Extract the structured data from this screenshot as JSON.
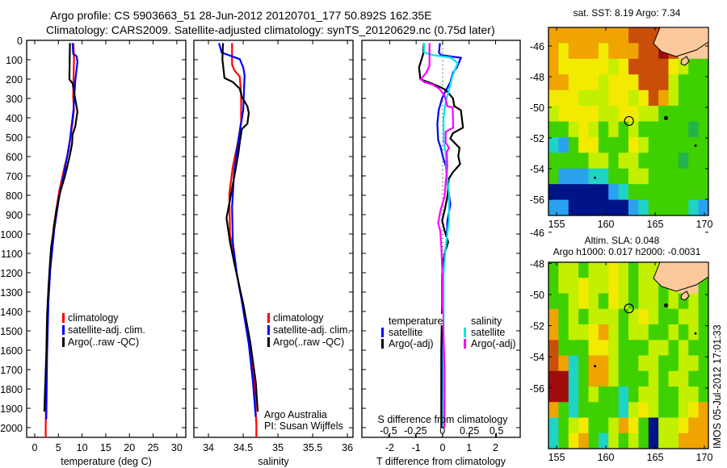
{
  "title_line1": "Argo profile: CS 5903663_51 28-Jun-2012 20120701_177 50.892S 162.35E",
  "title_line2": "Climatology: CARS2009. Satellite-adjusted climatology: synTS_20120629.nc (0.75d later)",
  "colors": {
    "climatology": "#ff0000",
    "satellite_adj": "#0000ff",
    "argo": "#000000",
    "s_satellite": "#00e5ee",
    "s_argo": "#ff00ff"
  },
  "chart_data": [
    {
      "type": "line",
      "xlabel": "temperature (deg C)",
      "ylabel": "",
      "xlim": [
        -1.7,
        31.9
      ],
      "ylim": [
        2050,
        0
      ],
      "xticks": [
        "0",
        "5",
        "10",
        "15",
        "20",
        "25",
        "30"
      ],
      "yticks": [
        "0",
        "100",
        "200",
        "300",
        "400",
        "500",
        "600",
        "700",
        "800",
        "900",
        "1000",
        "1100",
        "1200",
        "1300",
        "1400",
        "1500",
        "1600",
        "1700",
        "1800",
        "1900",
        "2000"
      ],
      "legend": [
        "climatology",
        "satellite-adj. clim.",
        "Argo(..raw -QC)"
      ],
      "series": [
        {
          "name": "climatology",
          "color": "#ff0000",
          "depth": [
            14,
            97,
            292,
            361,
            444,
            569,
            653,
            778,
            958,
            1181,
            1347,
            1625,
            1986,
            2050
          ],
          "values": [
            8.18,
            8.29,
            8.12,
            8.29,
            7.89,
            7.15,
            6.3,
            5.17,
            4.03,
            3.18,
            2.78,
            2.5,
            2.33,
            2.33
          ]
        },
        {
          "name": "satellite-adj. clim.",
          "color": "#0000ff",
          "depth": [
            14,
            69,
            83,
            111,
            208,
            361,
            514,
            597,
            708,
            806,
            972,
            1181,
            1347,
            1625,
            1958
          ],
          "values": [
            8.01,
            8.12,
            8.86,
            9.03,
            8.57,
            8.18,
            7.44,
            6.87,
            6.02,
            5.17,
            4.15,
            3.29,
            2.9,
            2.61,
            2.44
          ]
        },
        {
          "name": "Argo(..raw -QC)",
          "color": "#000000",
          "depth": [
            14,
            201,
            222,
            306,
            368,
            444,
            486,
            535,
            590,
            653,
            708,
            778,
            875,
            972,
            1069,
            1167,
            1278,
            1417,
            1625,
            1792,
            1917
          ],
          "values": [
            7.44,
            7.33,
            8.0,
            8.57,
            9.03,
            8.57,
            8.0,
            7.89,
            7.44,
            6.87,
            6.3,
            5.45,
            4.6,
            4.03,
            3.46,
            3.18,
            2.9,
            2.61,
            2.44,
            2.21,
            2.04
          ]
        }
      ]
    },
    {
      "type": "line",
      "xlabel": "salinity",
      "xlim": [
        33.79,
        36.08
      ],
      "ylim": [
        2050,
        0
      ],
      "xticks": [
        "34",
        "34.5",
        "35",
        "35.5",
        "36"
      ],
      "legend": [
        "climatology",
        "satellite-adj. clim.",
        "Argo(..raw -QC)"
      ],
      "annotations": [
        "Argo Australia",
        "PI: Susan Wijffels"
      ],
      "series": [
        {
          "name": "climatology",
          "color": "#ff0000",
          "depth": [
            14,
            125,
            153,
            188,
            278,
            417,
            514,
            653,
            792,
            1000,
            1167,
            1347,
            1556,
            1764,
            1986,
            2050
          ],
          "values": [
            34.34,
            34.34,
            34.37,
            34.45,
            34.47,
            34.47,
            34.43,
            34.35,
            34.3,
            34.31,
            34.39,
            34.48,
            34.58,
            34.66,
            34.69,
            34.69
          ]
        },
        {
          "name": "satellite-adj. clim.",
          "color": "#0000ff",
          "depth": [
            14,
            63,
            97,
            139,
            181,
            361,
            514,
            681,
            861,
            1042,
            1208,
            1347,
            1569,
            1764,
            1944
          ],
          "values": [
            34.15,
            34.19,
            34.45,
            34.5,
            34.52,
            34.5,
            34.43,
            34.37,
            34.34,
            34.35,
            34.41,
            34.48,
            34.58,
            34.64,
            34.68
          ]
        },
        {
          "name": "Argo(..raw -QC)",
          "color": "#000000",
          "depth": [
            14,
            97,
            194,
            215,
            250,
            292,
            340,
            375,
            431,
            458,
            528,
            583,
            667,
            764,
            861,
            917,
            1042,
            1181,
            1361,
            1556,
            1764,
            1917
          ],
          "values": [
            34.21,
            34.2,
            34.23,
            34.35,
            34.45,
            34.48,
            34.56,
            34.58,
            34.56,
            34.48,
            34.45,
            34.43,
            34.39,
            34.34,
            34.29,
            34.26,
            34.31,
            34.39,
            34.5,
            34.6,
            34.68,
            34.71
          ]
        }
      ]
    },
    {
      "type": "line",
      "xlabel": "T difference from climatology",
      "xlim": [
        -3.05,
        2.93
      ],
      "ylim": [
        2050,
        0
      ],
      "xticks": [
        "-2",
        "-1",
        "0",
        "1",
        "2"
      ],
      "secondary_xlabel": "S difference from climatology",
      "secondary_xlim": [
        -0.746,
        0.72
      ],
      "secondary_xticks": [
        "-0.5",
        "-0.25",
        "0",
        "0.25",
        "0.5"
      ],
      "legend_temperature_title": "temperature",
      "legend_salinity_title": "salinity",
      "legend": [
        "satellite",
        "Argo(-adj)",
        "satellite",
        "Argo(-adj)"
      ],
      "series": [
        {
          "name": "temperature satellite",
          "axis": "T",
          "color": "#0000ff",
          "depth": [
            14,
            63,
            76,
            90,
            139,
            167,
            215,
            257,
            299,
            361,
            431,
            514,
            556,
            611,
            653,
            736,
            847,
            931,
            1042,
            1139,
            1361,
            1700,
            2000
          ],
          "values": [
            -0.1,
            -0.14,
            -0.07,
            0.69,
            0.54,
            0.39,
            0.29,
            0.13,
            -0.02,
            -0.15,
            -0.2,
            -0.17,
            -0.07,
            0.03,
            0.13,
            0.18,
            0.29,
            0.18,
            0.15,
            0.03,
            0.03,
            0.02,
            0.03
          ]
        },
        {
          "name": "temperature Argo(-adj)",
          "axis": "T",
          "color": "#000000",
          "depth": [
            14,
            69,
            139,
            201,
            222,
            243,
            257,
            299,
            340,
            361,
            451,
            479,
            507,
            556,
            597,
            639,
            681,
            715,
            806,
            875,
            931,
            986,
            1042,
            1097,
            1208,
            1361,
            1600,
            2000
          ],
          "values": [
            -0.71,
            -0.73,
            -0.89,
            -0.84,
            -0.43,
            -0.07,
            0.13,
            0.39,
            0.44,
            0.69,
            0.77,
            0.39,
            0.29,
            0.64,
            0.59,
            0.66,
            0.39,
            0.23,
            0.18,
            0.08,
            -0.02,
            0.08,
            0.21,
            0.08,
            -0.02,
            -0.02,
            -0.05,
            -0.05
          ]
        },
        {
          "name": "salinity satellite",
          "axis": "S",
          "color": "#00e5ee",
          "depth": [
            14,
            63,
            76,
            90,
            118,
            181,
            257,
            319,
            403,
            514,
            583,
            681,
            792,
            931,
            1069,
            1208,
            1361,
            1700,
            2000
          ],
          "values": [
            -0.17,
            -0.17,
            -0.09,
            0.08,
            0.14,
            0.095,
            0.06,
            0.03,
            0.01,
            0.01,
            0.03,
            0.04,
            0.06,
            0.06,
            0.03,
            0.01,
            0.01,
            0.01,
            0.01
          ]
        },
        {
          "name": "salinity Argo(-adj)",
          "axis": "S",
          "color": "#ff00ff",
          "depth": [
            14,
            132,
            167,
            201,
            215,
            229,
            250,
            285,
            340,
            347,
            451,
            472,
            528,
            556,
            576,
            653,
            736,
            806,
            882,
            944,
            986,
            1069,
            1208,
            1361,
            1700,
            2000
          ],
          "values": [
            -0.12,
            -0.12,
            -0.15,
            -0.2,
            -0.17,
            -0.09,
            -0.03,
            0.02,
            0.045,
            0.095,
            0.1,
            0.03,
            0.03,
            0.06,
            0.04,
            0.045,
            0.03,
            0.02,
            -0.02,
            -0.04,
            -0.02,
            -0.01,
            0,
            0,
            0.02,
            0.02
          ]
        }
      ]
    },
    {
      "type": "heatmap",
      "title": "sat. SST: 8.19 Argo: 7.34",
      "xticks": [
        "155",
        "160",
        "165",
        "170"
      ],
      "yticks": [
        "-46",
        "-48",
        "-50",
        "-52",
        "-54",
        "-56"
      ],
      "profile_location": {
        "lon": 162.35,
        "lat": -50.892
      }
    },
    {
      "type": "heatmap",
      "title_line1": "Altim. SLA: 0.048",
      "title_line2": "Argo h1000: 0.017 h2000: -0.0031",
      "xticks": [
        "155",
        "160",
        "165",
        "170"
      ],
      "yticks": [
        "-46",
        "-48",
        "-50",
        "-52",
        "-54",
        "-56"
      ],
      "profile_location": {
        "lon": 162.35,
        "lat": -50.892
      },
      "timestamp": "IMOS 05-Jul-2012 17:01:33"
    }
  ]
}
